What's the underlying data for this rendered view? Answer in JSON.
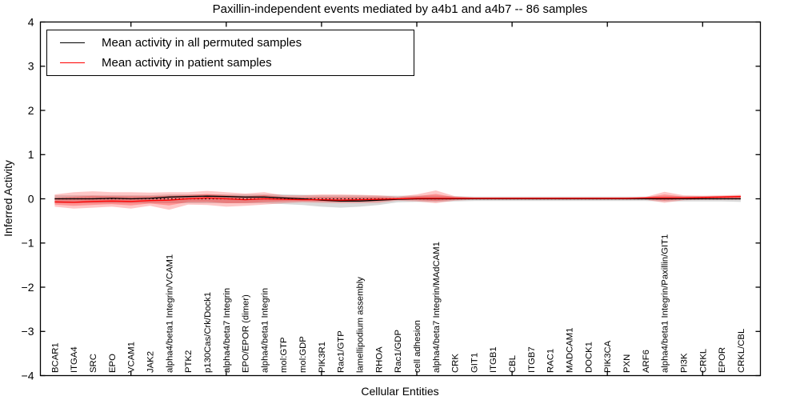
{
  "chart_data": {
    "type": "line",
    "title": "Paxillin-independent events mediated by a4b1 and a4b7 -- 86 samples",
    "xlabel": "Cellular Entities",
    "ylabel": "Inferred Activity",
    "ylim": [
      -4,
      4
    ],
    "y_ticks": [
      -4,
      -3,
      -2,
      -1,
      0,
      1,
      2,
      3,
      4
    ],
    "x_major_tick_indices": [
      4,
      9,
      14,
      19,
      24,
      29,
      34
    ],
    "grid": false,
    "legend_position": "upper left",
    "zero_line": {
      "y": 0,
      "style": "dotted",
      "color": "#000000"
    },
    "categories": [
      "BCAR1",
      "ITGA4",
      "SRC",
      "EPO",
      "VCAM1",
      "JAK2",
      "alpha4/beta1 Integrin/VCAM1",
      "PTK2",
      "p130Cas/Crk/Dock1",
      "alpha4/beta7 Integrin",
      "EPO/EPOR (dimer)",
      "alpha4/beta1 Integrin",
      "mol:GTP",
      "mol:GDP",
      "PIK3R1",
      "Rac1/GTP",
      "lamellipodium assembly",
      "RHOA",
      "Rac1/GDP",
      "cell adhesion",
      "alpha4/beta7 Integrin/MAdCAM1",
      "CRK",
      "GIT1",
      "ITGB1",
      "CBL",
      "ITGB7",
      "RAC1",
      "MADCAM1",
      "DOCK1",
      "PIK3CA",
      "PXN",
      "ARF6",
      "alpha4/beta1 Integrin/Paxillin/GIT1",
      "PI3K",
      "CRKL",
      "EPOR",
      "CRKL/CBL"
    ],
    "series": [
      {
        "name": "Mean activity in all permuted samples",
        "color": "#000000",
        "band_color": "#777777",
        "values": [
          0.0,
          0.0,
          0.0,
          0.01,
          0.0,
          0.01,
          0.04,
          0.05,
          0.06,
          0.05,
          0.04,
          0.04,
          0.02,
          0.0,
          -0.03,
          -0.05,
          -0.05,
          -0.03,
          -0.01,
          0.0,
          0.0,
          0.0,
          0.0,
          0.0,
          0.0,
          0.0,
          0.0,
          0.0,
          0.0,
          0.0,
          0.0,
          0.0,
          0.0,
          0.0,
          0.0,
          0.0,
          0.0
        ],
        "band_upper": [
          0.08,
          0.08,
          0.08,
          0.08,
          0.08,
          0.08,
          0.1,
          0.1,
          0.1,
          0.1,
          0.1,
          0.1,
          0.1,
          0.09,
          0.08,
          0.08,
          0.08,
          0.07,
          0.07,
          0.07,
          0.07,
          0.06,
          0.05,
          0.05,
          0.05,
          0.05,
          0.05,
          0.05,
          0.05,
          0.05,
          0.05,
          0.05,
          0.06,
          0.06,
          0.06,
          0.06,
          0.07
        ],
        "band_lower": [
          -0.1,
          -0.1,
          -0.1,
          -0.1,
          -0.1,
          -0.1,
          -0.1,
          -0.1,
          -0.1,
          -0.1,
          -0.1,
          -0.1,
          -0.12,
          -0.14,
          -0.18,
          -0.2,
          -0.18,
          -0.14,
          -0.08,
          -0.07,
          -0.07,
          -0.06,
          -0.05,
          -0.05,
          -0.05,
          -0.05,
          -0.05,
          -0.05,
          -0.05,
          -0.05,
          -0.05,
          -0.05,
          -0.06,
          -0.06,
          -0.06,
          -0.06,
          -0.07
        ]
      },
      {
        "name": "Mean activity in patient samples",
        "color": "#ff0000",
        "band_color": "#ff0000",
        "values": [
          -0.07,
          -0.08,
          -0.06,
          -0.05,
          -0.06,
          -0.04,
          -0.03,
          0.0,
          0.02,
          0.0,
          -0.02,
          0.0,
          -0.01,
          -0.02,
          -0.02,
          -0.03,
          -0.02,
          -0.01,
          0.0,
          0.01,
          0.01,
          0.01,
          0.01,
          0.01,
          0.01,
          0.01,
          0.01,
          0.01,
          0.01,
          0.01,
          0.01,
          0.02,
          0.02,
          0.02,
          0.03,
          0.04,
          0.05
        ],
        "band_upper": [
          0.1,
          0.15,
          0.17,
          0.15,
          0.15,
          0.14,
          0.15,
          0.15,
          0.18,
          0.15,
          0.12,
          0.15,
          0.08,
          0.08,
          0.1,
          0.1,
          0.09,
          0.08,
          0.05,
          0.1,
          0.19,
          0.06,
          0.03,
          0.03,
          0.03,
          0.03,
          0.03,
          0.03,
          0.03,
          0.03,
          0.03,
          0.04,
          0.16,
          0.08,
          0.07,
          0.08,
          0.09
        ],
        "band_lower": [
          -0.18,
          -0.22,
          -0.2,
          -0.18,
          -0.22,
          -0.16,
          -0.25,
          -0.13,
          -0.14,
          -0.18,
          -0.16,
          -0.13,
          -0.1,
          -0.08,
          -0.09,
          -0.1,
          -0.1,
          -0.09,
          -0.04,
          -0.06,
          -0.1,
          -0.04,
          -0.02,
          -0.02,
          -0.02,
          -0.02,
          -0.02,
          -0.02,
          -0.02,
          -0.02,
          -0.02,
          -0.02,
          -0.09,
          -0.03,
          -0.02,
          -0.02,
          -0.02
        ]
      }
    ]
  }
}
